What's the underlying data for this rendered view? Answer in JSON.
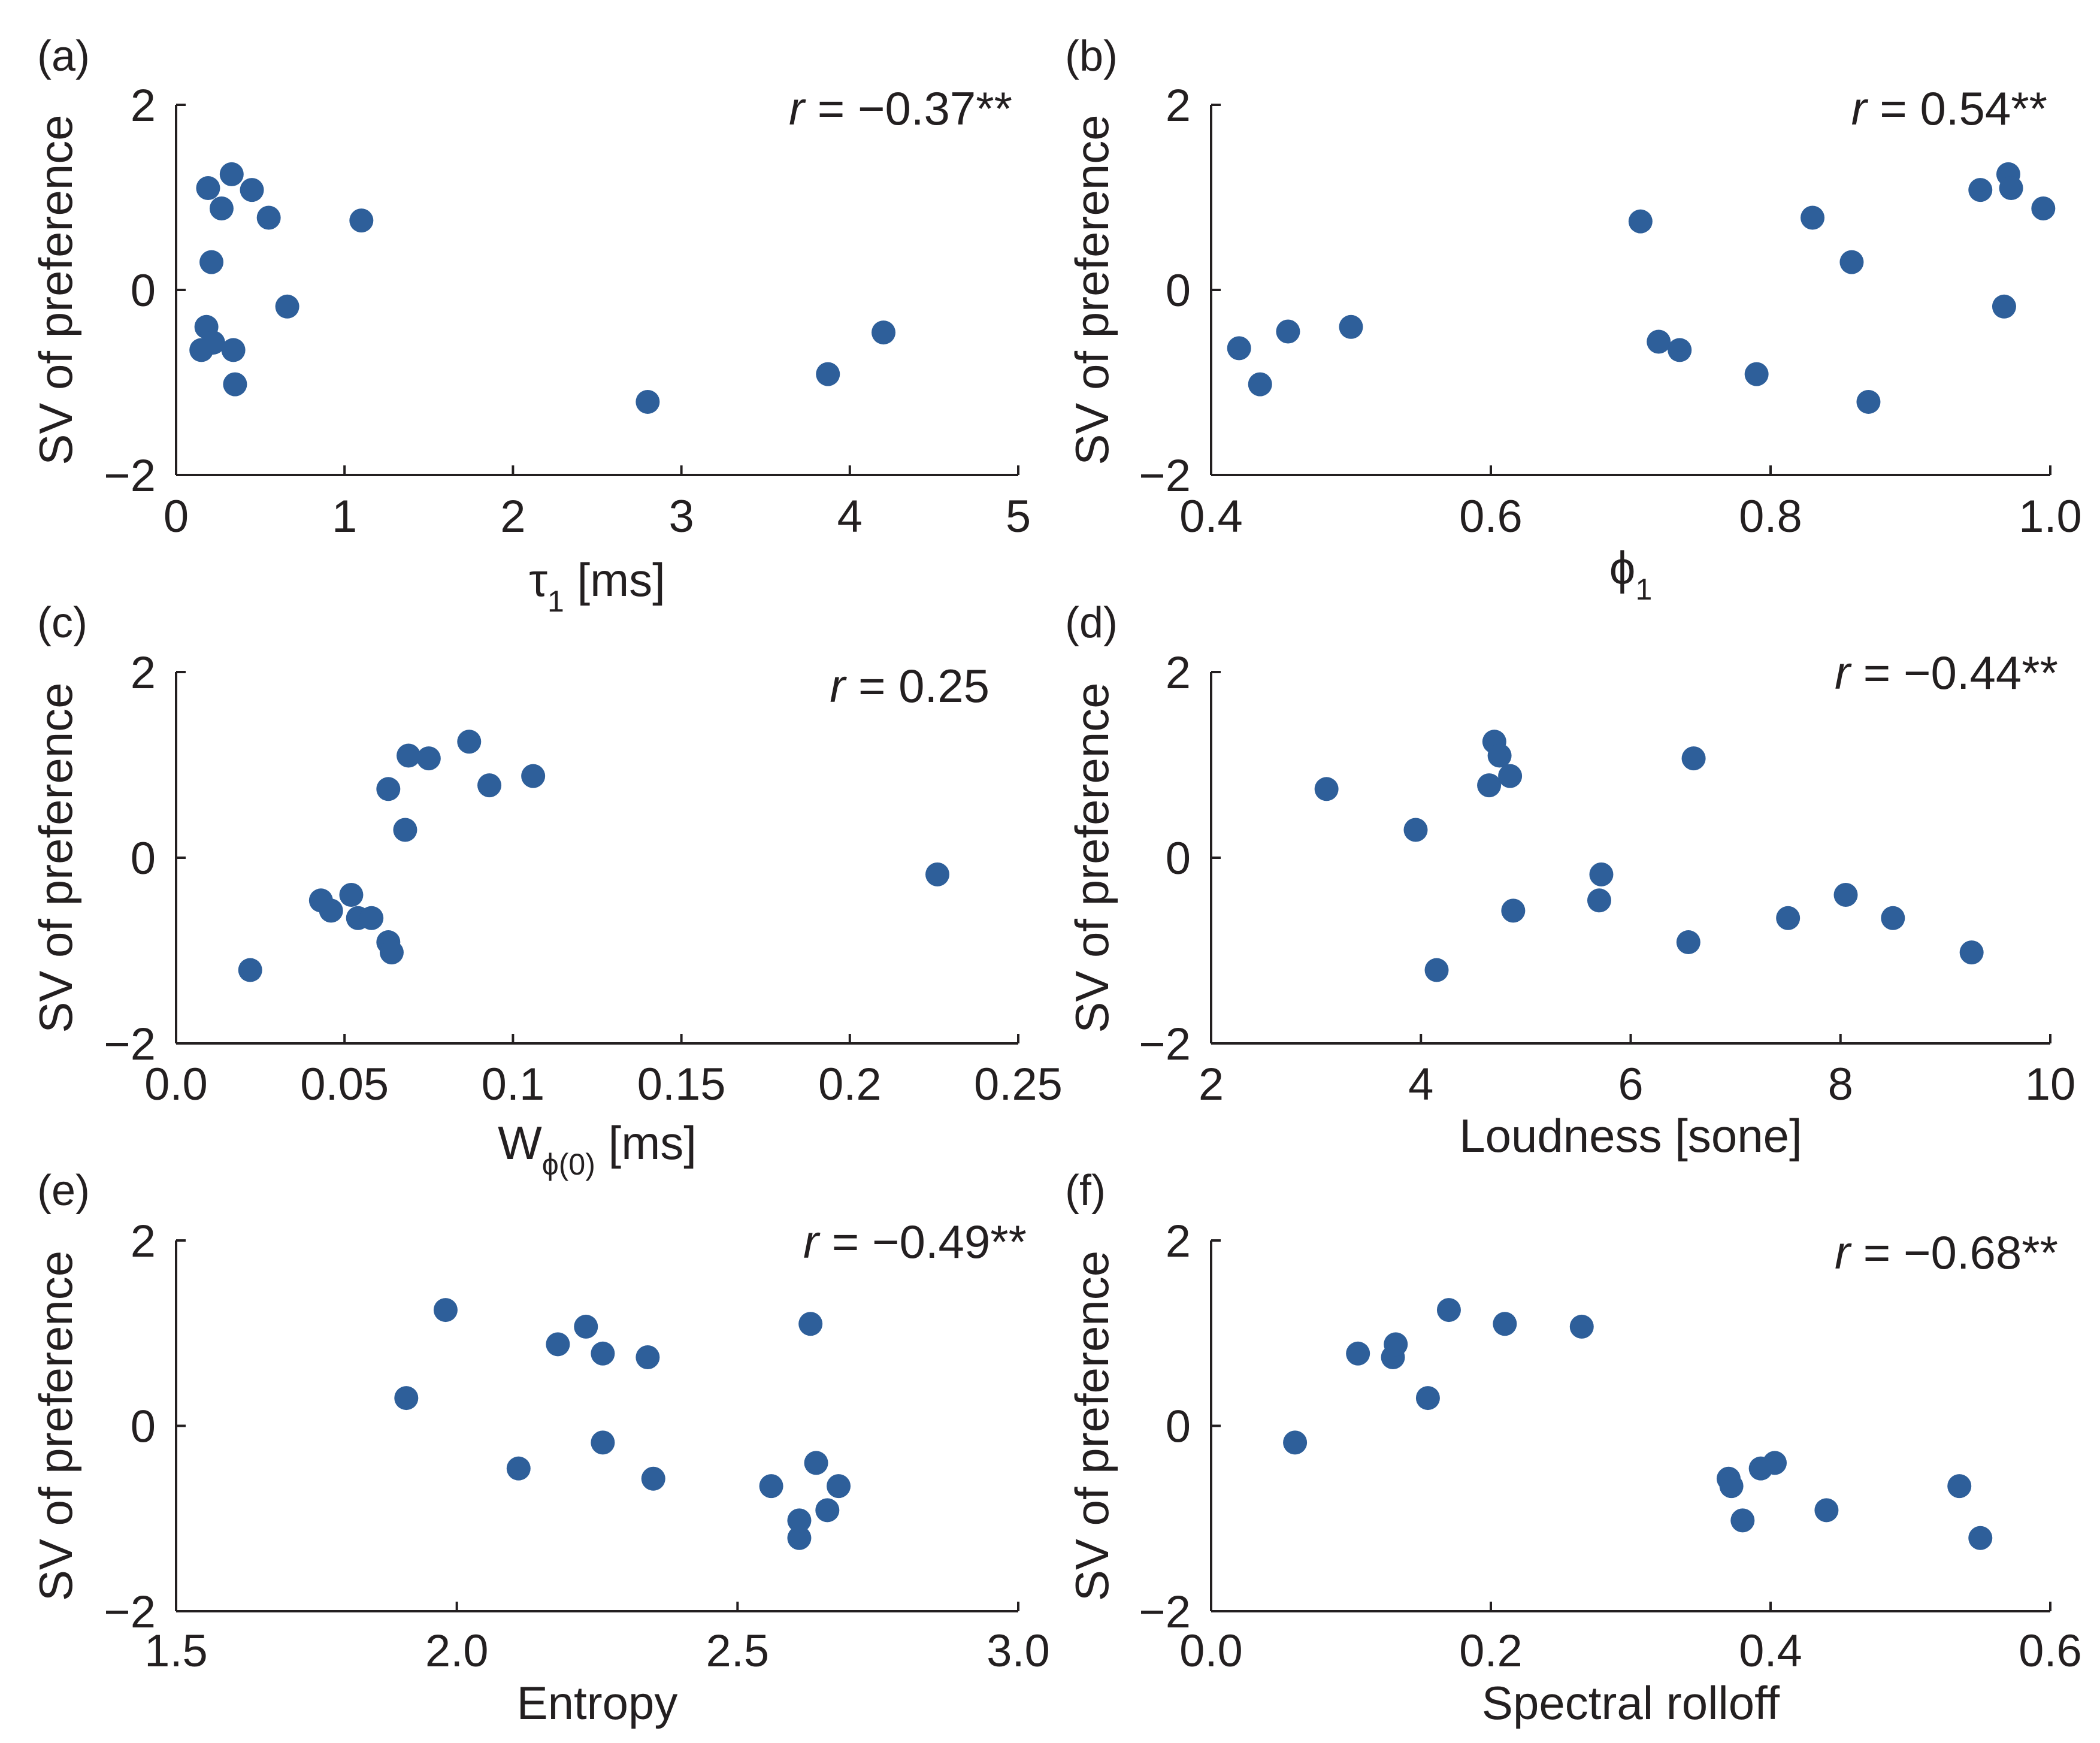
{
  "chart_data": [
    {
      "panel": "(a)",
      "type": "scatter",
      "xlabel": "τ1 [ms]",
      "xlabel_main": "τ",
      "xlabel_sub": "1",
      "xlabel_tail": " [ms]",
      "ylabel": "SV of preference",
      "xlim": [
        0,
        5
      ],
      "ylim": [
        -2,
        2
      ],
      "xticks": [
        0,
        1,
        2,
        3,
        4,
        5
      ],
      "xtick_labels": [
        "0",
        "1",
        "2",
        "3",
        "4",
        "5"
      ],
      "yticks": [
        -2,
        0,
        2
      ],
      "ytick_labels": [
        "−2",
        "0",
        "2"
      ],
      "r_text": "= −0.37**",
      "x": [
        0.33,
        0.45,
        0.19,
        0.27,
        0.55,
        1.1,
        0.21,
        0.66,
        0.18,
        0.22,
        0.15,
        0.34,
        0.35,
        2.8,
        3.87,
        4.2
      ],
      "y": [
        1.25,
        1.08,
        1.1,
        0.88,
        0.78,
        0.75,
        0.3,
        -0.18,
        -0.4,
        -0.57,
        -0.65,
        -0.65,
        -1.02,
        -1.21,
        -0.91,
        -0.46
      ]
    },
    {
      "panel": "(b)",
      "type": "scatter",
      "xlabel": "ϕ1",
      "xlabel_main": "ϕ",
      "xlabel_sub": "1",
      "xlabel_tail": "",
      "ylabel": "SV of preference",
      "xlim": [
        0.4,
        1.0
      ],
      "ylim": [
        -2,
        2
      ],
      "xticks": [
        0.4,
        0.6,
        0.8,
        1.0
      ],
      "xtick_labels": [
        "0.4",
        "0.6",
        "0.8",
        "1.0"
      ],
      "yticks": [
        -2,
        0,
        2
      ],
      "ytick_labels": [
        "−2",
        "0",
        "2"
      ],
      "r_text": "= 0.54**",
      "x": [
        0.42,
        0.435,
        0.455,
        0.5,
        0.707,
        0.72,
        0.735,
        0.79,
        0.83,
        0.858,
        0.87,
        0.95,
        0.97,
        0.972,
        0.967,
        0.995
      ],
      "y": [
        -0.63,
        -1.02,
        -0.45,
        -0.4,
        0.74,
        -0.56,
        -0.65,
        -0.91,
        0.78,
        0.3,
        -1.21,
        1.08,
        1.25,
        1.1,
        -0.18,
        0.88
      ]
    },
    {
      "panel": "(c)",
      "type": "scatter",
      "xlabel": "Wϕ(0) [ms]",
      "xlabel_main": "W",
      "xlabel_sub": "ϕ(0)",
      "xlabel_tail": " [ms]",
      "ylabel": "SV of preference",
      "xlim": [
        0,
        0.25
      ],
      "ylim": [
        -2,
        2
      ],
      "xticks": [
        0,
        0.05,
        0.1,
        0.15,
        0.2,
        0.25
      ],
      "xtick_labels": [
        "0.0",
        "0.05",
        "0.1",
        "0.15",
        "0.2",
        "0.25"
      ],
      "yticks": [
        -2,
        0,
        2
      ],
      "ytick_labels": [
        "−2",
        "0",
        "2"
      ],
      "r_text": "= 0.25",
      "x": [
        0.022,
        0.043,
        0.046,
        0.052,
        0.054,
        0.058,
        0.063,
        0.064,
        0.063,
        0.068,
        0.069,
        0.075,
        0.087,
        0.093,
        0.106,
        0.226
      ],
      "y": [
        -1.21,
        -0.46,
        -0.57,
        -0.4,
        -0.65,
        -0.65,
        -0.91,
        -1.02,
        0.74,
        0.3,
        1.1,
        1.07,
        1.25,
        0.78,
        0.88,
        -0.18
      ]
    },
    {
      "panel": "(d)",
      "type": "scatter",
      "xlabel": "Loudness [sone]",
      "xlabel_main": "Loudness [sone]",
      "xlabel_sub": "",
      "xlabel_tail": "",
      "ylabel": "SV of preference",
      "xlim": [
        2,
        10
      ],
      "ylim": [
        -2,
        2
      ],
      "xticks": [
        2,
        4,
        6,
        8,
        10
      ],
      "xtick_labels": [
        "2",
        "4",
        "6",
        "8",
        "10"
      ],
      "yticks": [
        -2,
        0,
        2
      ],
      "ytick_labels": [
        "−2",
        "0",
        "2"
      ],
      "r_text": "= −0.44**",
      "x": [
        3.1,
        3.95,
        4.15,
        4.65,
        4.7,
        4.75,
        4.85,
        4.88,
        5.7,
        5.72,
        6.55,
        6.6,
        7.5,
        8.05,
        8.5,
        9.25
      ],
      "y": [
        0.74,
        0.3,
        -1.21,
        0.78,
        1.25,
        1.1,
        0.88,
        -0.57,
        -0.46,
        -0.18,
        -0.91,
        1.07,
        -0.65,
        -0.4,
        -0.65,
        -1.02
      ]
    },
    {
      "panel": "(e)",
      "type": "scatter",
      "xlabel": "Entropy",
      "xlabel_main": "Entropy",
      "xlabel_sub": "",
      "xlabel_tail": "",
      "ylabel": "SV of preference",
      "xlim": [
        1.5,
        3.0
      ],
      "ylim": [
        -2,
        2
      ],
      "xticks": [
        1.5,
        2.0,
        2.5,
        3.0
      ],
      "xtick_labels": [
        "1.5",
        "2.0",
        "2.5",
        "3.0"
      ],
      "yticks": [
        -2,
        0,
        2
      ],
      "ytick_labels": [
        "−2",
        "0",
        "2"
      ],
      "r_text": "=  −0.49**",
      "x": [
        1.91,
        1.98,
        2.11,
        2.18,
        2.23,
        2.26,
        2.26,
        2.34,
        2.35,
        2.56,
        2.61,
        2.61,
        2.63,
        2.64,
        2.66,
        2.68
      ],
      "y": [
        0.3,
        1.25,
        -0.46,
        0.88,
        1.07,
        0.78,
        -0.18,
        0.74,
        -0.57,
        -0.65,
        -1.21,
        -1.02,
        1.1,
        -0.4,
        -0.91,
        -0.65
      ]
    },
    {
      "panel": "(f)",
      "type": "scatter",
      "xlabel": "Spectral rolloff",
      "xlabel_main": "Spectral rolloff",
      "xlabel_sub": "",
      "xlabel_tail": "",
      "ylabel": "SV of preference",
      "xlim": [
        0.0,
        0.6
      ],
      "ylim": [
        -2,
        2
      ],
      "xticks": [
        0.0,
        0.2,
        0.4,
        0.6
      ],
      "xtick_labels": [
        "0.0",
        "0.2",
        "0.4",
        "0.6"
      ],
      "yticks": [
        -2,
        0,
        2
      ],
      "ytick_labels": [
        "−2",
        "0",
        "2"
      ],
      "r_text": "=  −0.68**",
      "x": [
        0.06,
        0.105,
        0.13,
        0.132,
        0.155,
        0.17,
        0.21,
        0.265,
        0.37,
        0.372,
        0.38,
        0.393,
        0.403,
        0.44,
        0.535,
        0.55
      ],
      "y": [
        -0.18,
        0.78,
        0.74,
        0.88,
        0.3,
        1.25,
        1.1,
        1.07,
        -0.57,
        -0.65,
        -1.02,
        -0.46,
        -0.4,
        -0.91,
        -0.65,
        -1.21
      ]
    }
  ]
}
